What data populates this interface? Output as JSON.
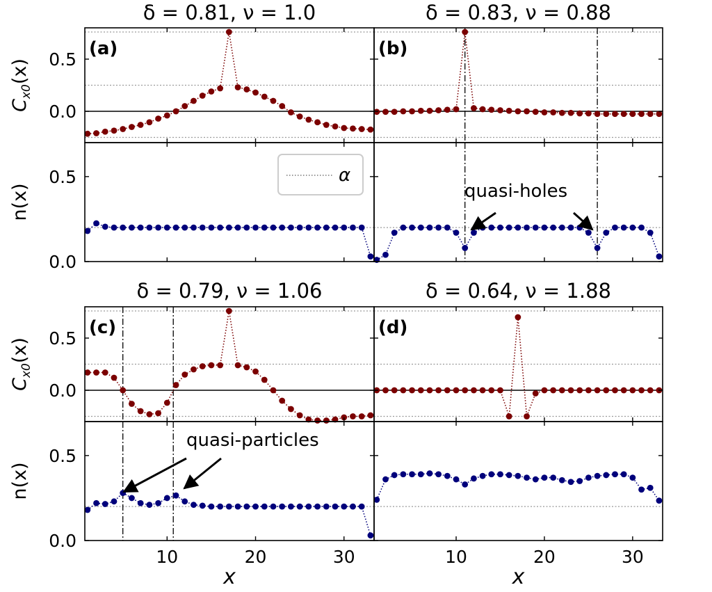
{
  "chart_data": [
    {
      "type": "scatter",
      "panel": "(a)",
      "title": "δ = 0.81, ν = 1.0",
      "top": {
        "ylabel": "C_{x0}(x)",
        "ylim": [
          -0.3,
          0.8
        ],
        "yticks": [
          0.0,
          0.5
        ],
        "ytick_labels": [
          "0.0",
          "0.5"
        ],
        "ref_lines": [
          0.76,
          0.25,
          -0.25
        ],
        "x": [
          1,
          2,
          3,
          4,
          5,
          6,
          7,
          8,
          9,
          10,
          11,
          12,
          13,
          14,
          15,
          16,
          17,
          18,
          19,
          20,
          21,
          22,
          23,
          24,
          25,
          26,
          27,
          28,
          29,
          30,
          31,
          32,
          33
        ],
        "y": [
          -0.215,
          -0.21,
          -0.195,
          -0.185,
          -0.17,
          -0.15,
          -0.13,
          -0.105,
          -0.07,
          -0.04,
          0.0,
          0.05,
          0.1,
          0.15,
          0.19,
          0.22,
          0.76,
          0.23,
          0.21,
          0.18,
          0.14,
          0.1,
          0.05,
          -0.01,
          -0.05,
          -0.08,
          -0.105,
          -0.13,
          -0.145,
          -0.16,
          -0.165,
          -0.17,
          -0.175
        ],
        "color": "#7b0000"
      },
      "bottom": {
        "ylabel": "n(x)",
        "ylim": [
          0.0,
          0.7
        ],
        "yticks": [
          0.0,
          0.5
        ],
        "ytick_labels": [
          "0.0",
          "0.5"
        ],
        "ref_lines": [
          0.2
        ],
        "x": [
          1,
          2,
          3,
          4,
          5,
          6,
          7,
          8,
          9,
          10,
          11,
          12,
          13,
          14,
          15,
          16,
          17,
          18,
          19,
          20,
          21,
          22,
          23,
          24,
          25,
          26,
          27,
          28,
          29,
          30,
          31,
          32,
          33
        ],
        "y": [
          0.18,
          0.225,
          0.205,
          0.2,
          0.2,
          0.2,
          0.2,
          0.2,
          0.2,
          0.2,
          0.2,
          0.2,
          0.2,
          0.2,
          0.2,
          0.2,
          0.2,
          0.2,
          0.2,
          0.2,
          0.2,
          0.2,
          0.2,
          0.2,
          0.2,
          0.2,
          0.2,
          0.2,
          0.2,
          0.2,
          0.2,
          0.2,
          0.03
        ],
        "color": "#00007b"
      },
      "legend": {
        "label": "α",
        "placement": "upper-right"
      }
    },
    {
      "type": "scatter",
      "panel": "(b)",
      "title": "δ = 0.83, ν = 0.88",
      "top": {
        "ylim": [
          -0.3,
          0.8
        ],
        "ref_lines": [
          0.76,
          0.25,
          -0.25
        ],
        "x": [
          1,
          2,
          3,
          4,
          5,
          6,
          7,
          8,
          9,
          10,
          11,
          12,
          13,
          14,
          15,
          16,
          17,
          18,
          19,
          20,
          21,
          22,
          23,
          24,
          25,
          26,
          27,
          28,
          29,
          30,
          31,
          32,
          33
        ],
        "y": [
          -0.005,
          -0.005,
          -0.005,
          0.0,
          0.0,
          0.005,
          0.005,
          0.01,
          0.015,
          0.02,
          0.76,
          0.03,
          0.02,
          0.015,
          0.01,
          0.005,
          0.0,
          0.0,
          -0.005,
          -0.01,
          -0.01,
          -0.015,
          -0.015,
          -0.02,
          -0.02,
          -0.025,
          -0.025,
          -0.025,
          -0.025,
          -0.025,
          -0.025,
          -0.025,
          -0.025
        ],
        "color": "#7b0000",
        "vlines": [
          11,
          26
        ]
      },
      "bottom": {
        "ylim": [
          0.0,
          0.7
        ],
        "ref_lines": [
          0.2
        ],
        "x": [
          1,
          2,
          3,
          4,
          5,
          6,
          7,
          8,
          9,
          10,
          11,
          12,
          13,
          14,
          15,
          16,
          17,
          18,
          19,
          20,
          21,
          22,
          23,
          24,
          25,
          26,
          27,
          28,
          29,
          30,
          31,
          32,
          33
        ],
        "y": [
          0.01,
          0.04,
          0.17,
          0.2,
          0.2,
          0.2,
          0.2,
          0.2,
          0.2,
          0.17,
          0.08,
          0.17,
          0.2,
          0.2,
          0.2,
          0.2,
          0.2,
          0.2,
          0.2,
          0.2,
          0.2,
          0.2,
          0.2,
          0.2,
          0.17,
          0.08,
          0.17,
          0.2,
          0.2,
          0.2,
          0.2,
          0.17,
          0.03
        ],
        "color": "#00007b",
        "vlines": [
          11,
          26
        ]
      },
      "annotation": {
        "text": "quasi-holes",
        "targets": [
          11,
          26
        ]
      }
    },
    {
      "type": "scatter",
      "panel": "(c)",
      "title": "δ = 0.79, ν = 1.06",
      "top": {
        "ylabel": "C_{x0}(x)",
        "ylim": [
          -0.3,
          0.8
        ],
        "yticks": [
          0.0,
          0.5
        ],
        "ytick_labels": [
          "0.0",
          "0.5"
        ],
        "ref_lines": [
          0.76,
          0.25,
          -0.25
        ],
        "x": [
          1,
          2,
          3,
          4,
          5,
          6,
          7,
          8,
          9,
          10,
          11,
          12,
          13,
          14,
          15,
          16,
          17,
          18,
          19,
          20,
          21,
          22,
          23,
          24,
          25,
          26,
          27,
          28,
          29,
          30,
          31,
          32,
          33
        ],
        "y": [
          0.17,
          0.17,
          0.17,
          0.12,
          0.0,
          -0.13,
          -0.2,
          -0.23,
          -0.22,
          -0.12,
          0.05,
          0.15,
          0.2,
          0.23,
          0.24,
          0.24,
          0.76,
          0.24,
          0.22,
          0.18,
          0.1,
          0.0,
          -0.1,
          -0.18,
          -0.24,
          -0.28,
          -0.29,
          -0.29,
          -0.28,
          -0.26,
          -0.25,
          -0.25,
          -0.24
        ],
        "color": "#7b0000",
        "vlines": [
          5,
          10.7
        ]
      },
      "bottom": {
        "ylabel": "n(x)",
        "ylim": [
          0.0,
          0.7
        ],
        "yticks": [
          0.0,
          0.5
        ],
        "ytick_labels": [
          "0.0",
          "0.5"
        ],
        "ref_lines": [
          0.2
        ],
        "x": [
          1,
          2,
          3,
          4,
          5,
          6,
          7,
          8,
          9,
          10,
          11,
          12,
          13,
          14,
          15,
          16,
          17,
          18,
          19,
          20,
          21,
          22,
          23,
          24,
          25,
          26,
          27,
          28,
          29,
          30,
          31,
          32,
          33
        ],
        "y": [
          0.18,
          0.22,
          0.215,
          0.23,
          0.28,
          0.25,
          0.22,
          0.21,
          0.22,
          0.25,
          0.265,
          0.23,
          0.21,
          0.205,
          0.2,
          0.2,
          0.2,
          0.2,
          0.2,
          0.2,
          0.2,
          0.2,
          0.2,
          0.2,
          0.2,
          0.2,
          0.2,
          0.2,
          0.2,
          0.2,
          0.2,
          0.2,
          0.03
        ],
        "color": "#00007b",
        "vlines": [
          5,
          10.7
        ]
      },
      "xlabel": "x",
      "xticks": [
        10,
        20,
        30
      ],
      "xtick_labels": [
        "10",
        "20",
        "30"
      ],
      "annotation": {
        "text": "quasi-particles",
        "targets": [
          5,
          10.7
        ]
      }
    },
    {
      "type": "scatter",
      "panel": "(d)",
      "title": "δ = 0.64, ν = 1.88",
      "top": {
        "ylim": [
          -0.3,
          0.8
        ],
        "ref_lines": [
          0.76,
          0.25,
          -0.25
        ],
        "x": [
          1,
          2,
          3,
          4,
          5,
          6,
          7,
          8,
          9,
          10,
          11,
          12,
          13,
          14,
          15,
          16,
          17,
          18,
          19,
          20,
          21,
          22,
          23,
          24,
          25,
          26,
          27,
          28,
          29,
          30,
          31,
          32,
          33
        ],
        "y": [
          0.0,
          0.0,
          0.0,
          0.0,
          0.0,
          0.0,
          0.0,
          0.0,
          0.0,
          0.0,
          0.0,
          0.0,
          0.0,
          0.0,
          0.0,
          -0.25,
          0.7,
          -0.25,
          -0.03,
          0.0,
          0.0,
          0.0,
          0.0,
          0.0,
          0.0,
          0.0,
          0.0,
          0.0,
          0.0,
          0.0,
          0.0,
          0.0,
          0.0
        ],
        "color": "#7b0000"
      },
      "bottom": {
        "ylim": [
          0.0,
          0.7
        ],
        "ref_lines": [
          0.2
        ],
        "x": [
          1,
          2,
          3,
          4,
          5,
          6,
          7,
          8,
          9,
          10,
          11,
          12,
          13,
          14,
          15,
          16,
          17,
          18,
          19,
          20,
          21,
          22,
          23,
          24,
          25,
          26,
          27,
          28,
          29,
          30,
          31,
          32,
          33
        ],
        "y": [
          0.24,
          0.36,
          0.385,
          0.39,
          0.39,
          0.39,
          0.395,
          0.39,
          0.38,
          0.36,
          0.33,
          0.365,
          0.38,
          0.39,
          0.39,
          0.385,
          0.38,
          0.37,
          0.36,
          0.37,
          0.37,
          0.355,
          0.345,
          0.35,
          0.37,
          0.38,
          0.385,
          0.39,
          0.39,
          0.37,
          0.3,
          0.31,
          0.235
        ],
        "color": "#00007b"
      },
      "xlabel": "x",
      "xticks": [
        10,
        20,
        30
      ],
      "xtick_labels": [
        "10",
        "20",
        "30"
      ]
    }
  ]
}
